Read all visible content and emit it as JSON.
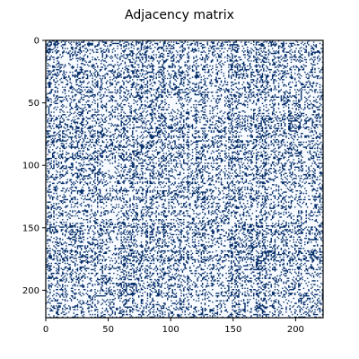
{
  "chart_data": {
    "type": "heatmap",
    "title": "Adjacency matrix",
    "xlabel": "",
    "ylabel": "",
    "n": 222,
    "xlim": [
      0,
      222
    ],
    "ylim": [
      222,
      0
    ],
    "x_ticks": [
      0,
      50,
      100,
      150,
      200
    ],
    "y_ticks": [
      0,
      50,
      100,
      150,
      200
    ],
    "x_tick_labels": [
      "0",
      "50",
      "100",
      "150",
      "200"
    ],
    "y_tick_labels": [
      "0",
      "50",
      "100",
      "150",
      "200"
    ],
    "density": 0.28,
    "grid": false,
    "colors": {
      "background": "#f7fbff",
      "cell": "#08306b",
      "frame": "#000000"
    }
  }
}
